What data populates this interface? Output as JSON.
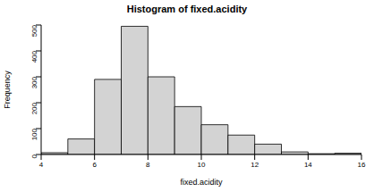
{
  "chart_data": {
    "type": "histogram",
    "title": "Histogram of fixed.acidity",
    "x_label": "fixed.acidity",
    "y_label": "Frequency",
    "bins": [
      4,
      5,
      6,
      7,
      8,
      9,
      10,
      11,
      12,
      13,
      14,
      15,
      16
    ],
    "counts": [
      7,
      60,
      290,
      495,
      300,
      185,
      115,
      75,
      40,
      10,
      3,
      5
    ],
    "color": "#d3d3d3",
    "xlim": [
      4,
      16
    ],
    "xticks": [
      4,
      6,
      8,
      10,
      12,
      14,
      16
    ],
    "ylim": [
      0,
      500
    ],
    "yticks": [
      0,
      100,
      200,
      300,
      400,
      500
    ],
    "grid": false
  }
}
